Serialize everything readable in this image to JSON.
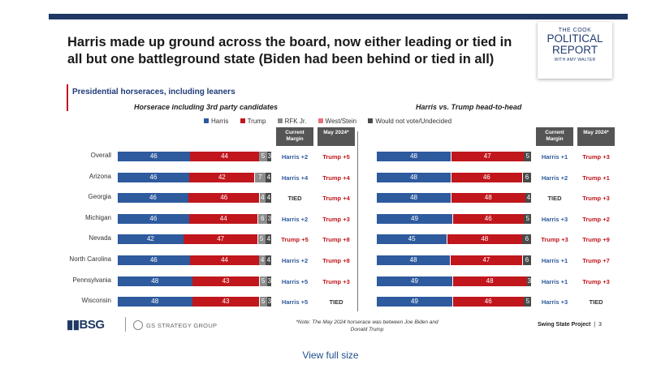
{
  "title": "Harris made up ground across the board, now either leading or tied in all but one battleground state (Biden had been behind or tied in all)",
  "logo": {
    "line1": "THE COOK",
    "line2": "POLITICAL",
    "line3": "REPORT",
    "line4": "WITH AMY WALTER"
  },
  "subtitle": "Presidential horseraces, including leaners",
  "colors": {
    "harris": "#2e5a9e",
    "trump": "#c0161c",
    "rfk": "#8c8c8c",
    "westStein": "#e8717e",
    "undecided": "#4a4a4a",
    "brandNavy": "#1f3864"
  },
  "legend": [
    {
      "label": "Harris",
      "color": "#2e5a9e"
    },
    {
      "label": "Trump",
      "color": "#c0161c"
    },
    {
      "label": "RFK Jr.",
      "color": "#8c8c8c"
    },
    {
      "label": "West/Stein",
      "color": "#e8717e"
    },
    {
      "label": "Would not vote/Undecided",
      "color": "#4a4a4a"
    }
  ],
  "column_headers": {
    "current": "Current Margin",
    "may": "May 2024*"
  },
  "footer": {
    "note": "*Note: The May 2024 horserace was between Joe Biden and Donald Trump",
    "project": "Swing State Project",
    "page": "3",
    "bsg": "BSG",
    "gs": "GS STRATEGY GROUP"
  },
  "view_full": "View full size",
  "chart_data": [
    {
      "type": "bar",
      "stacked": true,
      "orientation": "horizontal",
      "title": "Horserace including 3rd party candidates",
      "categories": [
        "Overall",
        "Arizona",
        "Georgia",
        "Michigan",
        "Nevada",
        "North Carolina",
        "Pennsylvania",
        "Wisconsin"
      ],
      "series": [
        {
          "name": "Harris",
          "values": [
            46,
            46,
            46,
            46,
            42,
            46,
            48,
            48
          ]
        },
        {
          "name": "Trump",
          "values": [
            44,
            42,
            46,
            44,
            47,
            44,
            43,
            43
          ]
        },
        {
          "name": "RFK Jr.",
          "values": [
            5,
            7,
            4,
            6,
            5,
            4,
            5,
            5
          ]
        },
        {
          "name": "West/Stein",
          "values": [
            0,
            0,
            0,
            0,
            0,
            0,
            0,
            0
          ]
        },
        {
          "name": "Would not vote/Undecided",
          "values": [
            3,
            4,
            4,
            3,
            4,
            4,
            3,
            3
          ]
        }
      ],
      "current_margin": [
        "Harris +2",
        "Harris +4",
        "TIED",
        "Harris +2",
        "Trump +5",
        "Harris +2",
        "Harris +5",
        "Harris +5"
      ],
      "may_2024": [
        "Trump +5",
        "Trump +4",
        "Trump +4",
        "Trump +3",
        "Trump +8",
        "Trump +8",
        "Trump +3",
        "TIED"
      ]
    },
    {
      "type": "bar",
      "stacked": true,
      "orientation": "horizontal",
      "title": "Harris vs. Trump head-to-head",
      "categories": [
        "Overall",
        "Arizona",
        "Georgia",
        "Michigan",
        "Nevada",
        "North Carolina",
        "Pennsylvania",
        "Wisconsin"
      ],
      "series": [
        {
          "name": "Harris",
          "values": [
            48,
            48,
            48,
            49,
            45,
            48,
            49,
            49
          ]
        },
        {
          "name": "Trump",
          "values": [
            47,
            46,
            48,
            46,
            48,
            47,
            48,
            46
          ]
        },
        {
          "name": "Would not vote/Undecided",
          "values": [
            5,
            6,
            4,
            5,
            6,
            6,
            3,
            5
          ]
        }
      ],
      "current_margin": [
        "Harris +1",
        "Harris +2",
        "TIED",
        "Harris +3",
        "Trump +3",
        "Harris +1",
        "Harris +1",
        "Harris +3"
      ],
      "may_2024": [
        "Trump +3",
        "Trump +1",
        "Trump +3",
        "Trump +2",
        "Trump +9",
        "Trump +7",
        "Trump +3",
        "TIED"
      ]
    }
  ]
}
